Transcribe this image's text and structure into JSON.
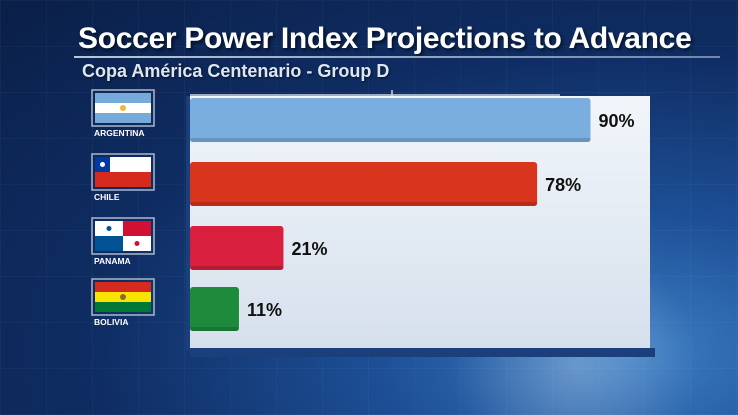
{
  "header": {
    "title": "Soccer Power Index Projections to Advance",
    "subtitle": "Copa América Centenario - Group D"
  },
  "chart_data": {
    "type": "bar",
    "orientation": "horizontal",
    "categories": [
      "ARGENTINA",
      "CHILE",
      "PANAMA",
      "BOLIVIA"
    ],
    "values": [
      90,
      78,
      21,
      11
    ],
    "value_labels": [
      "90%",
      "78%",
      "21%",
      "11%"
    ],
    "colors": [
      "#7aaede",
      "#d8341e",
      "#d8203e",
      "#1e8a3c"
    ],
    "xlim": [
      0,
      100
    ],
    "grid": false,
    "legend": "none"
  },
  "flags": [
    "argentina-flag-icon",
    "chile-flag-icon",
    "panama-flag-icon",
    "bolivia-flag-icon"
  ]
}
